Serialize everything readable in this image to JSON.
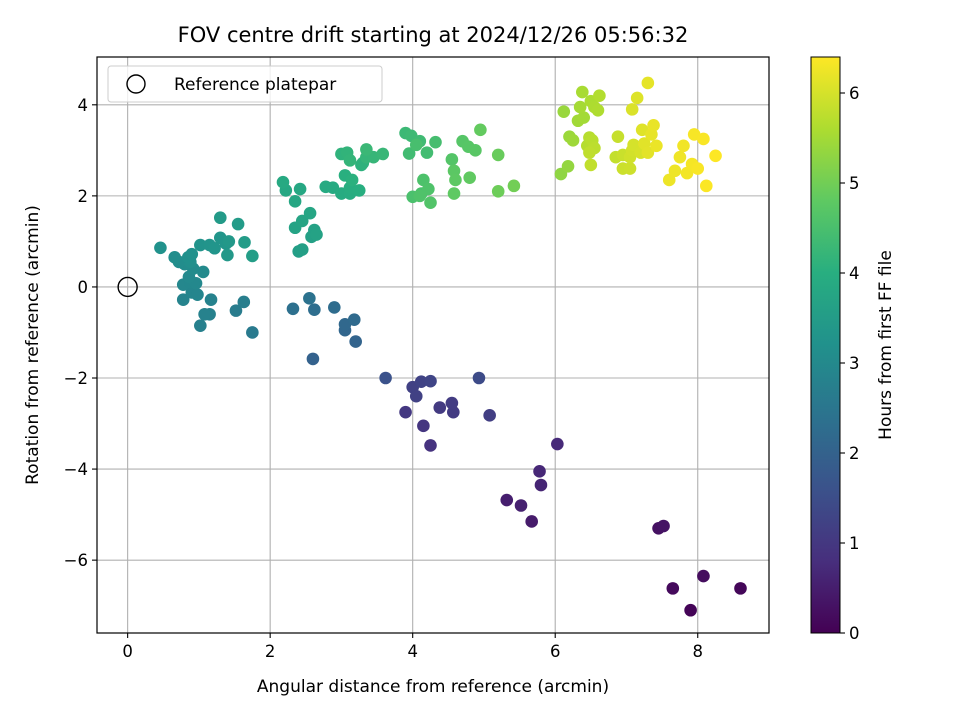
{
  "chart_data": {
    "type": "scatter",
    "title": "FOV centre drift starting at 2024/12/26 05:56:32",
    "xlabel": "Angular distance from reference (arcmin)",
    "ylabel": "Rotation from reference (arcmin)",
    "xlim": [
      -0.43,
      9.0
    ],
    "ylim": [
      -7.6,
      5.05
    ],
    "xticks": [
      0,
      2,
      4,
      6,
      8
    ],
    "yticks": [
      -6,
      -4,
      -2,
      0,
      2,
      4
    ],
    "xtick_labels": [
      "0",
      "2",
      "4",
      "6",
      "8"
    ],
    "ytick_labels": [
      "−6",
      "−4",
      "−2",
      "0",
      "2",
      "4"
    ],
    "grid": true,
    "colormap": "viridis",
    "colorbar": {
      "label": "Hours from first FF file",
      "min": 0,
      "max": 6.4,
      "ticks": [
        0,
        1,
        2,
        3,
        4,
        5,
        6
      ],
      "tick_labels": [
        "0",
        "1",
        "2",
        "3",
        "4",
        "5",
        "6"
      ]
    },
    "legend": {
      "position": "upper-left",
      "label": "Reference platepar"
    },
    "reference_point": {
      "x": 0,
      "y": 0
    },
    "points": [
      [
        7.9,
        -7.1,
        0.05
      ],
      [
        8.6,
        -6.62,
        0.1
      ],
      [
        7.65,
        -6.62,
        0.15
      ],
      [
        8.08,
        -6.35,
        0.2
      ],
      [
        7.45,
        -5.3,
        0.28
      ],
      [
        7.52,
        -5.25,
        0.32
      ],
      [
        5.67,
        -5.15,
        0.45
      ],
      [
        5.32,
        -4.68,
        0.5
      ],
      [
        5.52,
        -4.8,
        0.55
      ],
      [
        5.8,
        -4.35,
        0.62
      ],
      [
        5.78,
        -4.05,
        0.68
      ],
      [
        6.03,
        -3.45,
        0.72
      ],
      [
        4.25,
        -3.48,
        0.9
      ],
      [
        4.15,
        -3.05,
        0.95
      ],
      [
        3.9,
        -2.75,
        1.0
      ],
      [
        4.38,
        -2.65,
        1.05
      ],
      [
        4.57,
        -2.75,
        1.08
      ],
      [
        4.55,
        -2.55,
        1.1
      ],
      [
        5.08,
        -2.82,
        1.15
      ],
      [
        4.0,
        -2.2,
        1.2
      ],
      [
        4.05,
        -2.4,
        1.22
      ],
      [
        4.12,
        -2.08,
        1.25
      ],
      [
        4.25,
        -2.07,
        1.3
      ],
      [
        4.93,
        -2.0,
        1.45
      ],
      [
        3.62,
        -2.0,
        1.6
      ],
      [
        2.6,
        -1.58,
        2.0
      ],
      [
        3.2,
        -1.2,
        2.05
      ],
      [
        3.05,
        -0.95,
        2.1
      ],
      [
        3.05,
        -0.82,
        2.15
      ],
      [
        3.18,
        -0.72,
        2.2
      ],
      [
        2.9,
        -0.45,
        2.25
      ],
      [
        2.62,
        -0.5,
        2.3
      ],
      [
        2.32,
        -0.48,
        2.35
      ],
      [
        2.55,
        -0.25,
        2.4
      ],
      [
        1.75,
        -1.0,
        2.6
      ],
      [
        1.52,
        -0.52,
        2.65
      ],
      [
        1.63,
        -0.33,
        2.7
      ],
      [
        1.02,
        -0.85,
        2.75
      ],
      [
        1.15,
        -0.6,
        2.78
      ],
      [
        1.08,
        -0.6,
        2.8
      ],
      [
        1.17,
        -0.28,
        2.82
      ],
      [
        0.78,
        -0.28,
        2.85
      ],
      [
        0.9,
        -0.12,
        2.88
      ],
      [
        0.98,
        -0.17,
        2.9
      ],
      [
        0.78,
        0.05,
        2.93
      ],
      [
        0.88,
        0.1,
        2.95
      ],
      [
        0.96,
        0.08,
        2.98
      ],
      [
        0.86,
        0.22,
        3.0
      ],
      [
        1.06,
        0.33,
        3.02
      ],
      [
        0.92,
        0.4,
        3.05
      ],
      [
        0.8,
        0.5,
        3.08
      ],
      [
        0.72,
        0.55,
        3.1
      ],
      [
        0.66,
        0.65,
        3.12
      ],
      [
        0.88,
        0.55,
        3.15
      ],
      [
        0.85,
        0.65,
        3.18
      ],
      [
        0.9,
        0.72,
        3.2
      ],
      [
        0.46,
        0.86,
        3.22
      ],
      [
        1.02,
        0.92,
        3.25
      ],
      [
        1.15,
        0.92,
        3.28
      ],
      [
        1.22,
        0.85,
        3.3
      ],
      [
        1.3,
        1.08,
        3.32
      ],
      [
        1.38,
        0.95,
        3.35
      ],
      [
        1.42,
        1.0,
        3.38
      ],
      [
        1.4,
        0.7,
        3.4
      ],
      [
        1.3,
        1.52,
        3.45
      ],
      [
        1.55,
        1.38,
        3.48
      ],
      [
        1.64,
        0.98,
        3.5
      ],
      [
        1.75,
        0.68,
        3.52
      ],
      [
        2.4,
        0.78,
        3.55
      ],
      [
        2.45,
        0.82,
        3.58
      ],
      [
        2.58,
        1.1,
        3.62
      ],
      [
        2.62,
        1.25,
        3.65
      ],
      [
        2.65,
        1.15,
        3.68
      ],
      [
        2.35,
        1.3,
        3.7
      ],
      [
        2.45,
        1.45,
        3.72
      ],
      [
        2.56,
        1.62,
        3.75
      ],
      [
        2.35,
        1.88,
        3.78
      ],
      [
        2.42,
        2.15,
        3.8
      ],
      [
        2.22,
        2.12,
        3.82
      ],
      [
        2.18,
        2.3,
        3.85
      ],
      [
        2.78,
        2.2,
        3.88
      ],
      [
        2.88,
        2.18,
        3.9
      ],
      [
        3.0,
        2.05,
        3.92
      ],
      [
        3.12,
        2.05,
        3.95
      ],
      [
        3.12,
        2.18,
        3.98
      ],
      [
        3.25,
        2.12,
        4.0
      ],
      [
        3.05,
        2.45,
        4.02
      ],
      [
        3.15,
        2.35,
        4.05
      ],
      [
        3.28,
        2.68,
        4.08
      ],
      [
        3.3,
        2.72,
        4.1
      ],
      [
        3.0,
        2.92,
        4.12
      ],
      [
        3.08,
        2.95,
        4.15
      ],
      [
        3.12,
        2.78,
        4.18
      ],
      [
        3.35,
        2.85,
        4.2
      ],
      [
        3.45,
        2.85,
        4.22
      ],
      [
        3.58,
        2.92,
        4.25
      ],
      [
        3.35,
        3.02,
        4.28
      ],
      [
        3.9,
        3.38,
        4.3
      ],
      [
        3.98,
        3.32,
        4.32
      ],
      [
        4.1,
        3.2,
        4.35
      ],
      [
        3.95,
        2.93,
        4.38
      ],
      [
        4.2,
        2.95,
        4.4
      ],
      [
        4.32,
        3.18,
        4.45
      ],
      [
        4.05,
        3.12,
        4.48
      ],
      [
        4.12,
        2.05,
        4.5
      ],
      [
        4.0,
        1.98,
        4.52
      ],
      [
        4.15,
        2.35,
        4.55
      ],
      [
        4.22,
        2.15,
        4.58
      ],
      [
        4.1,
        2.0,
        4.6
      ],
      [
        4.25,
        1.85,
        4.62
      ],
      [
        4.55,
        2.8,
        4.65
      ],
      [
        4.7,
        3.2,
        4.68
      ],
      [
        4.78,
        3.08,
        4.7
      ],
      [
        4.88,
        3.0,
        4.72
      ],
      [
        4.58,
        2.55,
        4.75
      ],
      [
        4.6,
        2.35,
        4.78
      ],
      [
        4.58,
        2.05,
        4.8
      ],
      [
        4.8,
        2.4,
        4.82
      ],
      [
        4.95,
        3.45,
        4.85
      ],
      [
        5.2,
        2.9,
        4.9
      ],
      [
        5.2,
        2.1,
        4.95
      ],
      [
        5.42,
        2.22,
        5.0
      ],
      [
        6.08,
        2.48,
        5.3
      ],
      [
        6.18,
        2.65,
        5.35
      ],
      [
        6.12,
        3.85,
        5.4
      ],
      [
        6.2,
        3.3,
        5.42
      ],
      [
        6.25,
        3.22,
        5.45
      ],
      [
        6.32,
        3.65,
        5.48
      ],
      [
        6.4,
        3.72,
        5.5
      ],
      [
        6.35,
        3.95,
        5.52
      ],
      [
        6.38,
        4.28,
        5.55
      ],
      [
        6.5,
        4.08,
        5.58
      ],
      [
        6.55,
        3.95,
        5.6
      ],
      [
        6.6,
        3.88,
        5.62
      ],
      [
        6.62,
        4.2,
        5.65
      ],
      [
        6.45,
        3.1,
        5.68
      ],
      [
        6.48,
        3.28,
        5.7
      ],
      [
        6.52,
        3.22,
        5.72
      ],
      [
        6.55,
        3.05,
        5.75
      ],
      [
        6.48,
        2.95,
        5.78
      ],
      [
        6.5,
        2.68,
        5.8
      ],
      [
        6.85,
        2.85,
        5.82
      ],
      [
        6.88,
        3.3,
        5.85
      ],
      [
        6.95,
        2.9,
        5.88
      ],
      [
        6.95,
        2.6,
        5.9
      ],
      [
        7.05,
        2.6,
        5.92
      ],
      [
        7.05,
        2.85,
        5.95
      ],
      [
        7.08,
        3.0,
        5.97
      ],
      [
        7.1,
        3.12,
        6.0
      ],
      [
        7.2,
        2.95,
        6.02
      ],
      [
        7.08,
        3.9,
        6.05
      ],
      [
        7.15,
        4.15,
        6.08
      ],
      [
        7.22,
        3.45,
        6.1
      ],
      [
        7.25,
        3.15,
        6.12
      ],
      [
        7.3,
        2.95,
        6.14
      ],
      [
        7.3,
        4.48,
        6.16
      ],
      [
        7.35,
        3.35,
        6.18
      ],
      [
        7.38,
        3.55,
        6.2
      ],
      [
        7.42,
        3.1,
        6.22
      ],
      [
        7.6,
        2.35,
        6.24
      ],
      [
        7.68,
        2.55,
        6.25
      ],
      [
        7.75,
        2.85,
        6.26
      ],
      [
        7.8,
        3.1,
        6.28
      ],
      [
        7.85,
        2.5,
        6.3
      ],
      [
        7.92,
        2.7,
        6.32
      ],
      [
        7.95,
        3.35,
        6.34
      ],
      [
        8.0,
        2.6,
        6.35
      ],
      [
        8.08,
        3.25,
        6.36
      ],
      [
        8.12,
        2.22,
        6.38
      ],
      [
        8.25,
        2.88,
        6.4
      ]
    ]
  }
}
